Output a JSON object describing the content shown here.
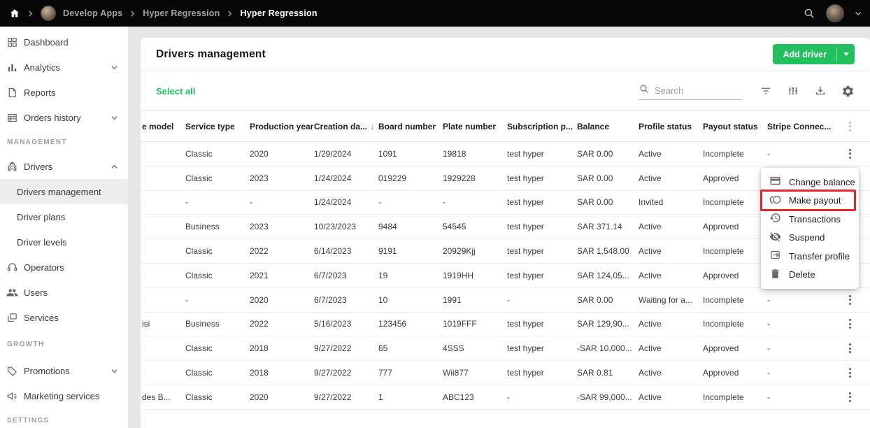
{
  "topbar": {
    "breadcrumb": [
      "Develop Apps",
      "Hyper Regression",
      "Hyper Regression"
    ]
  },
  "sidebar": {
    "items": [
      {
        "type": "link",
        "label": "Dashboard",
        "icon": "dashboard-icon"
      },
      {
        "type": "link",
        "label": "Analytics",
        "icon": "analytics-icon",
        "chevron": "down"
      },
      {
        "type": "link",
        "label": "Reports",
        "icon": "reports-icon"
      },
      {
        "type": "link",
        "label": "Orders history",
        "icon": "orders-history-icon",
        "chevron": "down"
      },
      {
        "type": "section",
        "label": "MANAGEMENT"
      },
      {
        "type": "link",
        "label": "Drivers",
        "icon": "drivers-icon",
        "chevron": "up"
      },
      {
        "type": "sub",
        "label": "Drivers management",
        "selected": true
      },
      {
        "type": "sub",
        "label": "Driver plans"
      },
      {
        "type": "sub",
        "label": "Driver levels"
      },
      {
        "type": "link",
        "label": "Operators",
        "icon": "operators-icon"
      },
      {
        "type": "link",
        "label": "Users",
        "icon": "users-icon"
      },
      {
        "type": "link",
        "label": "Services",
        "icon": "services-icon"
      },
      {
        "type": "section",
        "label": "GROWTH"
      },
      {
        "type": "link",
        "label": "Promotions",
        "icon": "promotions-icon",
        "chevron": "down"
      },
      {
        "type": "link",
        "label": "Marketing services",
        "icon": "marketing-icon"
      },
      {
        "type": "section",
        "label": "SETTINGS"
      }
    ]
  },
  "header": {
    "title": "Drivers management",
    "add_driver_label": "Add driver"
  },
  "toolbar": {
    "select_all_label": "Select all",
    "search_placeholder": "Search"
  },
  "table": {
    "columns": [
      {
        "name": "column-vehicle-model",
        "label": "e model"
      },
      {
        "name": "column-service-type",
        "label": "Service type"
      },
      {
        "name": "column-production-year",
        "label": "Production year"
      },
      {
        "name": "column-creation-date",
        "label": "Creation da...",
        "sort": "desc"
      },
      {
        "name": "column-board-number",
        "label": "Board number"
      },
      {
        "name": "column-plate-number",
        "label": "Plate number"
      },
      {
        "name": "column-subscription-plan",
        "label": "Subscription p..."
      },
      {
        "name": "column-balance",
        "label": "Balance"
      },
      {
        "name": "column-profile-status",
        "label": "Profile status"
      },
      {
        "name": "column-payout-status",
        "label": "Payout status"
      },
      {
        "name": "column-stripe-connect",
        "label": "Stripe Connec..."
      },
      {
        "name": "column-settings",
        "label": "",
        "kebab": true
      }
    ],
    "rows": [
      [
        "",
        "Classic",
        "2020",
        "1/29/2024",
        "1091",
        "19818",
        "test hyper",
        "SAR 0.00",
        "Active",
        "Incomplete",
        "-"
      ],
      [
        "",
        "Classic",
        "2023",
        "1/24/2024",
        "019229",
        "1929228",
        "test hyper",
        "SAR 0.00",
        "Active",
        "Approved",
        ""
      ],
      [
        "",
        "-",
        "-",
        "1/24/2024",
        "-",
        "-",
        "test hyper",
        "SAR 0.00",
        "Invited",
        "Incomplete",
        ""
      ],
      [
        "",
        "Business",
        "2023",
        "10/23/2023",
        "9484",
        "54545",
        "test hyper",
        "SAR 371.14",
        "Active",
        "Approved",
        ""
      ],
      [
        "",
        "Classic",
        "2022",
        "6/14/2023",
        "9191",
        "20929Kjj",
        "test hyper",
        "SAR 1,548.00",
        "Active",
        "Incomplete",
        ""
      ],
      [
        "",
        "Classic",
        "2021",
        "6/7/2023",
        "19",
        "1919HH",
        "test hyper",
        "SAR 124,05...",
        "Active",
        "Approved",
        ""
      ],
      [
        "",
        "-",
        "2020",
        "6/7/2023",
        "10",
        "1991",
        "-",
        "SAR 0.00",
        "Waiting for a...",
        "Incomplete",
        "-"
      ],
      [
        "isi",
        "Business",
        "2022",
        "5/16/2023",
        "123456",
        "1019FFF",
        "test hyper",
        "SAR 129,90...",
        "Active",
        "Incomplete",
        "-"
      ],
      [
        "",
        "Classic",
        "2018",
        "9/27/2022",
        "65",
        "4SSS",
        "test hyper",
        "-SAR 10,000...",
        "Active",
        "Approved",
        "-"
      ],
      [
        "",
        "Classic",
        "2018",
        "9/27/2022",
        "777",
        "Wii877",
        "test hyper",
        "SAR 0.81",
        "Active",
        "Approved",
        "-"
      ],
      [
        "des B...",
        "Classic",
        "2020",
        "9/27/2022",
        "1",
        "ABC123",
        "-",
        "-SAR 99,000...",
        "Active",
        "Incomplete",
        "-"
      ]
    ]
  },
  "menu": {
    "items": [
      {
        "label": "Change balance",
        "icon": "credit-card-icon"
      },
      {
        "label": "Make payout",
        "icon": "payout-coins-icon",
        "highlighted": true
      },
      {
        "label": "Transactions",
        "icon": "history-icon"
      },
      {
        "label": "Suspend",
        "icon": "eye-off-icon"
      },
      {
        "label": "Transfer profile",
        "icon": "transfer-icon"
      },
      {
        "label": "Delete",
        "icon": "trash-icon"
      }
    ]
  },
  "colors": {
    "accent_green": "#22c05e",
    "highlight_red": "#e8242b",
    "topbar_bg": "#070707"
  }
}
